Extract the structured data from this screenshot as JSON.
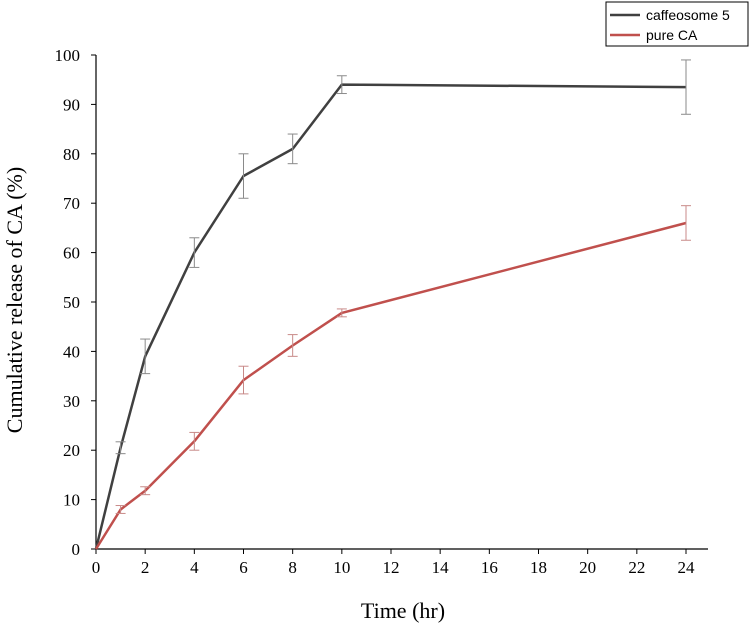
{
  "chart_data": {
    "type": "line",
    "title": "",
    "xlabel": "Time (hr)",
    "ylabel": "Cumulative release of CA (%)",
    "xlim": [
      0,
      24
    ],
    "ylim": [
      0,
      100
    ],
    "x_ticks": [
      0,
      2,
      4,
      6,
      8,
      10,
      12,
      14,
      16,
      18,
      20,
      22,
      24
    ],
    "y_ticks": [
      0,
      10,
      20,
      30,
      40,
      50,
      60,
      70,
      80,
      90,
      100
    ],
    "grid": false,
    "legend_position": "top-right",
    "series": [
      {
        "name": "caffeosome 5",
        "color": "#404040",
        "x": [
          0,
          1,
          2,
          4,
          6,
          8,
          10,
          24
        ],
        "y": [
          0,
          20.5,
          39,
          60,
          75.5,
          81,
          94,
          93.5
        ],
        "error": [
          0,
          1.2,
          3.5,
          3,
          4.5,
          3,
          1.8,
          5.5
        ]
      },
      {
        "name": "pure CA",
        "color": "#c0504d",
        "x": [
          0,
          1,
          2,
          4,
          6,
          8,
          10,
          24
        ],
        "y": [
          0,
          8,
          11.8,
          21.8,
          34.2,
          41.2,
          47.8,
          66
        ],
        "error": [
          0,
          0.8,
          0.8,
          1.8,
          2.8,
          2.2,
          0.8,
          3.5
        ]
      }
    ]
  }
}
